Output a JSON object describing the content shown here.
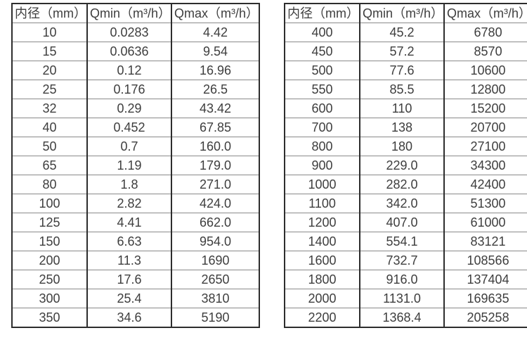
{
  "page": {
    "background": "#ffffff"
  },
  "colors": {
    "text": "#3e3e3e",
    "border_strong": "#2d2d2d",
    "border_light": "#8a8a8a"
  },
  "chart_data": [
    {
      "type": "table",
      "name": "flow-rate-table-small-diameters",
      "headers": [
        "内径（mm）",
        "Qmin（m³/h）",
        "Qmax（m³/h）"
      ],
      "rows": [
        [
          "10",
          "0.0283",
          "4.42"
        ],
        [
          "15",
          "0.0636",
          "9.54"
        ],
        [
          "20",
          "0.12",
          "16.96"
        ],
        [
          "25",
          "0.176",
          "26.5"
        ],
        [
          "32",
          "0.29",
          "43.42"
        ],
        [
          "40",
          "0.452",
          "67.85"
        ],
        [
          "50",
          "0.7",
          "160.0"
        ],
        [
          "65",
          "1.19",
          "179.0"
        ],
        [
          "80",
          "1.8",
          "271.0"
        ],
        [
          "100",
          "2.82",
          "424.0"
        ],
        [
          "125",
          "4.41",
          "662.0"
        ],
        [
          "150",
          "6.63",
          "954.0"
        ],
        [
          "200",
          "11.3",
          "1690"
        ],
        [
          "250",
          "17.6",
          "2650"
        ],
        [
          "300",
          "25.4",
          "3810"
        ],
        [
          "350",
          "34.6",
          "5190"
        ]
      ]
    },
    {
      "type": "table",
      "name": "flow-rate-table-large-diameters",
      "headers": [
        "内径（mm）",
        "Qmin（m³/h）",
        "Qmax（m³/h）"
      ],
      "rows": [
        [
          "400",
          "45.2",
          "6780"
        ],
        [
          "450",
          "57.2",
          "8570"
        ],
        [
          "500",
          "77.6",
          "10600"
        ],
        [
          "550",
          "85.5",
          "12800"
        ],
        [
          "600",
          "110",
          "15200"
        ],
        [
          "700",
          "138",
          "20700"
        ],
        [
          "800",
          "180",
          "27100"
        ],
        [
          "900",
          "229.0",
          "34300"
        ],
        [
          "1000",
          "282.0",
          "42400"
        ],
        [
          "1100",
          "342.0",
          "51300"
        ],
        [
          "1200",
          "407.0",
          "61000"
        ],
        [
          "1400",
          "554.1",
          "83121"
        ],
        [
          "1600",
          "732.7",
          "108566"
        ],
        [
          "1800",
          "916.0",
          "137404"
        ],
        [
          "2000",
          "1131.0",
          "169635"
        ],
        [
          "2200",
          "1368.4",
          "205258"
        ]
      ]
    }
  ]
}
